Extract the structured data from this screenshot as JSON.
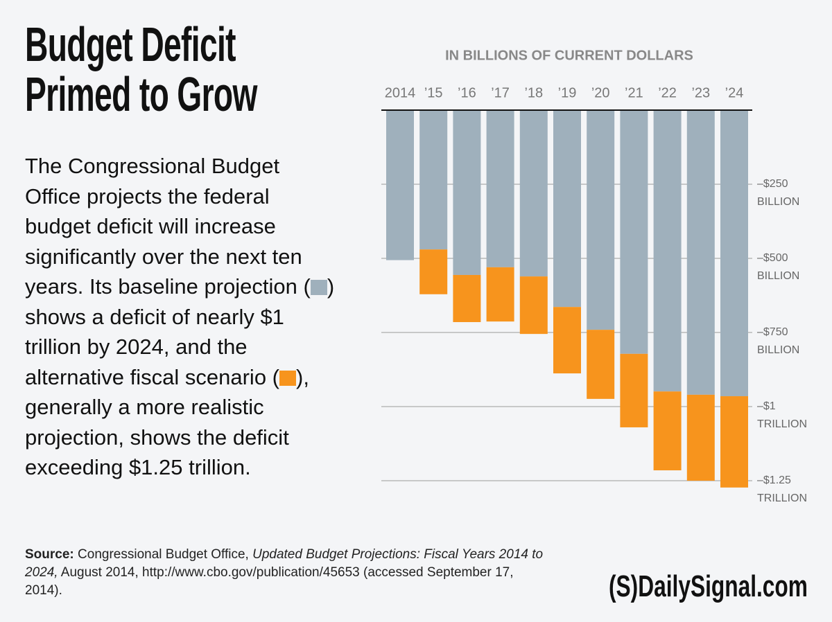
{
  "header": {
    "title": "Budget Deficit Primed to Grow"
  },
  "body": {
    "paragraph": [
      "The Congressional Budget Office projects the federal budget deficit will increase significantly over the next ten years. Its baseline projection (",
      ") shows a deficit of nearly $1 trillion by 2024, and the alternative fiscal scenario (",
      "), generally a more realistic projection, shows the deficit exceeding $1.25 trillion."
    ]
  },
  "chart_data": {
    "type": "bar",
    "subtitle": "IN BILLIONS OF CURRENT DOLLARS",
    "categories": [
      "2014",
      "’15",
      "’16",
      "’17",
      "’18",
      "’19",
      "’20",
      "’21",
      "’22",
      "’23",
      "’24"
    ],
    "series": [
      {
        "color": "#9fb0bc",
        "values": [
          -506,
          -470,
          -556,
          -530,
          -561,
          -664,
          -741,
          -822,
          -949,
          -960,
          -965
        ]
      },
      {
        "color": "#f7941d",
        "values": [
          -506,
          -621,
          -715,
          -713,
          -755,
          -888,
          -974,
          -1070,
          -1215,
          -1250,
          -1273
        ]
      }
    ],
    "ylim": [
      -1300,
      0
    ],
    "yticks": [
      {
        "value": -250,
        "label": "–$250\nBILLION"
      },
      {
        "value": -500,
        "label": "–$500\nBILLION"
      },
      {
        "value": -750,
        "label": "–$750\nBILLION"
      },
      {
        "value": -1000,
        "label": "–$1\nTRILLION"
      },
      {
        "value": -1250,
        "label": "–$1.25\nTRILLION"
      }
    ],
    "grid": true
  },
  "footer": {
    "source_label": "Source:",
    "source_parts": [
      "Congressional Budget Office, ",
      "Updated Budget Projections: Fiscal Years 2014 to 2024,",
      " August 2014, http://www.cbo.gov/publication/45653 (accessed September 17, 2014)."
    ],
    "brand": "(S)DailySignal.com"
  }
}
